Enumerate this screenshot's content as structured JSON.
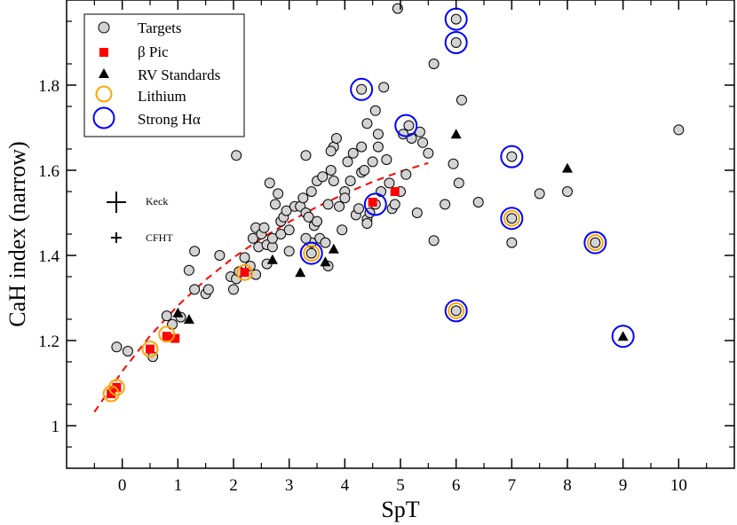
{
  "chart_data": {
    "type": "scatter",
    "xlabel": "SpT",
    "ylabel": "CaH index (narrow)",
    "xlim": [
      -1,
      11
    ],
    "ylim": [
      0.9,
      2.0
    ],
    "xticks": [
      0,
      1,
      2,
      3,
      4,
      5,
      6,
      7,
      8,
      9,
      10
    ],
    "yticks": [
      1,
      1.2,
      1.4,
      1.6,
      1.8
    ],
    "ytick_labels": [
      "1",
      "1.2",
      "1.4",
      "1.6",
      "1.8"
    ],
    "legend": {
      "position": "top-left",
      "entries": [
        "Targets",
        "β Pic",
        "RV Standards",
        "Lithium",
        "Strong Hα"
      ]
    },
    "error_bar_labels": [
      "Keck",
      "CFHT"
    ],
    "colors": {
      "targets_fill": "#d3d3d3",
      "bpic": "#ff0000",
      "rv": "#000000",
      "lithium": "#ffa500",
      "halpha": "#0000ff",
      "fit": "#ff0000"
    },
    "fit_curve": {
      "style": "dashed",
      "x": [
        -0.5,
        0,
        0.5,
        1,
        1.5,
        2,
        2.5,
        3,
        3.5,
        4,
        4.5,
        5,
        5.5
      ],
      "y": [
        1.032,
        1.128,
        1.211,
        1.282,
        1.343,
        1.395,
        1.44,
        1.479,
        1.514,
        1.545,
        1.573,
        1.597,
        1.617
      ]
    },
    "series": [
      {
        "name": "Targets",
        "points": [
          [
            -0.1,
            1.185
          ],
          [
            0.1,
            1.175
          ],
          [
            0.55,
            1.162
          ],
          [
            0.8,
            1.258
          ],
          [
            0.9,
            1.238
          ],
          [
            1.05,
            1.255
          ],
          [
            1.2,
            1.365
          ],
          [
            1.3,
            1.41
          ],
          [
            1.3,
            1.32
          ],
          [
            1.5,
            1.31
          ],
          [
            1.55,
            1.32
          ],
          [
            1.75,
            1.4
          ],
          [
            1.95,
            1.35
          ],
          [
            2.0,
            1.32
          ],
          [
            2.05,
            1.345
          ],
          [
            2.05,
            1.635
          ],
          [
            2.1,
            1.362
          ],
          [
            2.2,
            1.395
          ],
          [
            2.3,
            1.375
          ],
          [
            2.35,
            1.44
          ],
          [
            2.4,
            1.355
          ],
          [
            2.4,
            1.465
          ],
          [
            2.45,
            1.42
          ],
          [
            2.5,
            1.45
          ],
          [
            2.55,
            1.465
          ],
          [
            2.6,
            1.425
          ],
          [
            2.65,
            1.57
          ],
          [
            2.7,
            1.42
          ],
          [
            2.7,
            1.44
          ],
          [
            2.75,
            1.52
          ],
          [
            2.8,
            1.545
          ],
          [
            2.85,
            1.48
          ],
          [
            2.85,
            1.45
          ],
          [
            2.9,
            1.49
          ],
          [
            2.95,
            1.505
          ],
          [
            3.0,
            1.46
          ],
          [
            3.1,
            1.515
          ],
          [
            3.2,
            1.515
          ],
          [
            3.25,
            1.535
          ],
          [
            3.3,
            1.5
          ],
          [
            3.3,
            1.635
          ],
          [
            3.35,
            1.49
          ],
          [
            3.4,
            1.55
          ],
          [
            3.45,
            1.47
          ],
          [
            3.5,
            1.48
          ],
          [
            3.5,
            1.575
          ],
          [
            3.55,
            1.44
          ],
          [
            3.6,
            1.585
          ],
          [
            3.65,
            1.43
          ],
          [
            3.7,
            1.375
          ],
          [
            3.7,
            1.52
          ],
          [
            3.75,
            1.6
          ],
          [
            3.8,
            1.575
          ],
          [
            3.8,
            1.655
          ],
          [
            3.85,
            1.675
          ],
          [
            3.9,
            1.515
          ],
          [
            3.95,
            1.46
          ],
          [
            4.0,
            1.55
          ],
          [
            4.05,
            1.62
          ],
          [
            4.1,
            1.575
          ],
          [
            4.15,
            1.64
          ],
          [
            4.2,
            1.495
          ],
          [
            4.25,
            1.51
          ],
          [
            4.3,
            1.595
          ],
          [
            4.35,
            1.6
          ],
          [
            4.4,
            1.485
          ],
          [
            4.45,
            1.5
          ],
          [
            4.5,
            1.62
          ],
          [
            4.55,
            1.74
          ],
          [
            4.6,
            1.655
          ],
          [
            4.65,
            1.55
          ],
          [
            4.7,
            1.795
          ],
          [
            4.75,
            1.625
          ],
          [
            4.8,
            1.57
          ],
          [
            4.85,
            1.51
          ],
          [
            4.9,
            1.52
          ],
          [
            5.0,
            1.55
          ],
          [
            5.05,
            1.685
          ],
          [
            5.1,
            1.59
          ],
          [
            5.2,
            1.675
          ],
          [
            5.3,
            1.5
          ],
          [
            5.35,
            1.69
          ],
          [
            5.4,
            1.665
          ],
          [
            5.5,
            1.64
          ],
          [
            5.6,
            1.435
          ],
          [
            5.6,
            1.85
          ],
          [
            5.95,
            1.615
          ],
          [
            6.05,
            1.57
          ],
          [
            6.1,
            1.765
          ],
          [
            6.4,
            1.525
          ],
          [
            7.0,
            1.43
          ],
          [
            7.5,
            1.545
          ],
          [
            8.0,
            1.55
          ],
          [
            3.4,
            1.43
          ],
          [
            3.0,
            1.41
          ],
          [
            2.6,
            1.38
          ],
          [
            4.4,
            1.475
          ],
          [
            4.4,
            1.71
          ],
          [
            3.75,
            1.645
          ],
          [
            5.8,
            1.52
          ],
          [
            4.95,
            1.98
          ],
          [
            10.0,
            1.695
          ],
          [
            4.0,
            1.535
          ],
          [
            3.3,
            1.44
          ],
          [
            4.3,
            1.655
          ],
          [
            4.6,
            1.685
          ]
        ]
      },
      {
        "name": "β Pic",
        "points": [
          [
            -0.2,
            1.075
          ],
          [
            -0.1,
            1.09
          ],
          [
            0.5,
            1.18
          ],
          [
            0.8,
            1.21
          ],
          [
            0.95,
            1.205
          ],
          [
            2.2,
            1.36
          ],
          [
            4.5,
            1.525
          ],
          [
            4.9,
            1.55
          ]
        ]
      },
      {
        "name": "RV Standards",
        "points": [
          [
            1.0,
            1.265
          ],
          [
            1.2,
            1.25
          ],
          [
            2.7,
            1.39
          ],
          [
            3.2,
            1.36
          ],
          [
            3.65,
            1.385
          ],
          [
            3.8,
            1.415
          ],
          [
            6.0,
            1.685
          ],
          [
            8.0,
            1.605
          ],
          [
            9.0,
            1.21
          ]
        ]
      },
      {
        "name": "Lithium",
        "points": [
          [
            -0.2,
            1.075
          ],
          [
            -0.1,
            1.09
          ],
          [
            0.5,
            1.18
          ],
          [
            0.8,
            1.215
          ],
          [
            2.2,
            1.36
          ],
          [
            3.4,
            1.405
          ],
          [
            6.0,
            1.27
          ],
          [
            7.0,
            1.487
          ],
          [
            8.5,
            1.43
          ]
        ]
      },
      {
        "name": "Strong Hα",
        "points": [
          [
            3.4,
            1.405
          ],
          [
            4.3,
            1.79
          ],
          [
            4.55,
            1.52
          ],
          [
            5.1,
            1.705
          ],
          [
            6.0,
            1.955
          ],
          [
            6.0,
            1.9
          ],
          [
            6.0,
            1.27
          ],
          [
            7.0,
            1.632
          ],
          [
            7.0,
            1.487
          ],
          [
            8.5,
            1.43
          ],
          [
            9.0,
            1.21
          ]
        ]
      },
      {
        "name": "Strong Hα targets",
        "points": [
          [
            4.3,
            1.79
          ],
          [
            4.55,
            1.52
          ],
          [
            5.15,
            1.705
          ],
          [
            6.0,
            1.955
          ],
          [
            6.0,
            1.9
          ],
          [
            7.0,
            1.632
          ]
        ]
      },
      {
        "name": "Lithium targets",
        "points": [
          [
            3.4,
            1.405
          ],
          [
            6.0,
            1.27
          ],
          [
            7.0,
            1.487
          ],
          [
            8.5,
            1.43
          ]
        ]
      }
    ]
  }
}
